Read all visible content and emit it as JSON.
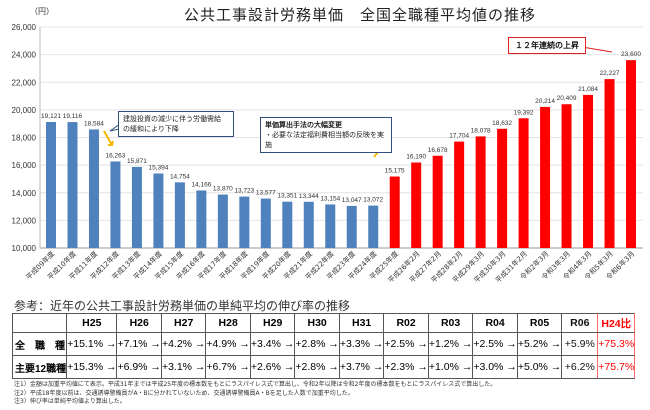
{
  "title": "公共工事設計労務単価　全国全職種平均値の推移",
  "unit": "（円）",
  "chart_data": {
    "type": "bar",
    "title": "公共工事設計労務単価　全国全職種平均値の推移",
    "ylabel": "（円）",
    "ylim": [
      10000,
      26000
    ],
    "yticks": [
      "10,000",
      "12,000",
      "14,000",
      "16,000",
      "18,000",
      "20,000",
      "22,000",
      "24,000",
      "26,000"
    ],
    "grid": true,
    "categories": [
      "平成09年度",
      "平成10年度",
      "平成11年度",
      "平成12年度",
      "平成13年度",
      "平成14年度",
      "平成15年度",
      "平成16年度",
      "平成17年度",
      "平成18年度",
      "平成19年度",
      "平成20年度",
      "平成21年度",
      "平成22年度",
      "平成23年度",
      "平成24年度",
      "平成25年度",
      "平成26年2月",
      "平成27年2月",
      "平成28年2月",
      "平成29年3月",
      "平成30年3月",
      "平成31年2月",
      "令和2年3月",
      "令和3年3月",
      "令和4年3月",
      "令和5年3月",
      "令和6年3月"
    ],
    "values": [
      19121,
      19116,
      18584,
      16263,
      15871,
      15394,
      14754,
      14166,
      13870,
      13723,
      13577,
      13351,
      13344,
      13154,
      13047,
      13072,
      15175,
      16190,
      16678,
      17704,
      18078,
      18632,
      19392,
      20214,
      20409,
      21084,
      22227,
      23600
    ],
    "value_labels": [
      "19,121",
      "19,116",
      "18,584",
      "16,263",
      "15,871",
      "15,394",
      "14,754",
      "14,166",
      "13,870",
      "13,723",
      "13,577",
      "13,351",
      "13,344",
      "13,154",
      "13,047",
      "13,072",
      "15,175",
      "16,190",
      "16,678",
      "17,704",
      "18,078",
      "18,632",
      "19,392",
      "20,214",
      "20,409",
      "21,084",
      "22,227",
      "23,600"
    ],
    "colors": {
      "before": "#4f81bd",
      "after": "#ff0000"
    },
    "annotations": {
      "decline_line1": "建設投資の減少に伴う労働需給",
      "decline_line2": "の緩和により下降",
      "method_title": "単価算出手法の大幅変更",
      "method_body": "・必要な法定福利費相当額の反映を実施",
      "rise": "１２年連続の上昇"
    }
  },
  "table": {
    "caption": "参考：近年の公共工事設計労務単価の単純平均の伸び率の推移",
    "headers": [
      "H25",
      "H26",
      "H27",
      "H28",
      "H29",
      "H30",
      "H31",
      "R02",
      "R03",
      "R04",
      "R05",
      "R06",
      "H24比"
    ],
    "rows": [
      {
        "label": "全　職　種",
        "cells": [
          "+15.1% →",
          "+7.1% →",
          "+4.2% →",
          "+4.9% →",
          "+3.4% →",
          "+2.8% →",
          "+3.3% →",
          "+2.5% →",
          "+1.2% →",
          "+2.5% →",
          "+5.2% →",
          "+5.9%",
          "+75.3%"
        ]
      },
      {
        "label": "主要12職種",
        "cells": [
          "+15.3% →",
          "+6.9% →",
          "+3.1% →",
          "+6.7% →",
          "+2.6% →",
          "+2.8% →",
          "+3.7% →",
          "+2.3% →",
          "+1.0% →",
          "+3.0% →",
          "+5.0% →",
          "+6.2%",
          "+75.7%"
        ]
      }
    ]
  },
  "notes": [
    "注1）金額は加重平均値にて表示。平成31年までは平成25年度の標本数をもとにラスパイレス式で算出し、令和2年以降は令和2年度の標本数をもとにラスパイレス式で算出した。",
    "注2）平成18年度以前は、交通誘導警備員がA・Bに分かれていないため、交通誘導警備員A・Bを足した人数で加重平均した。",
    "注3）伸び率は単純平均値より算出した。"
  ]
}
